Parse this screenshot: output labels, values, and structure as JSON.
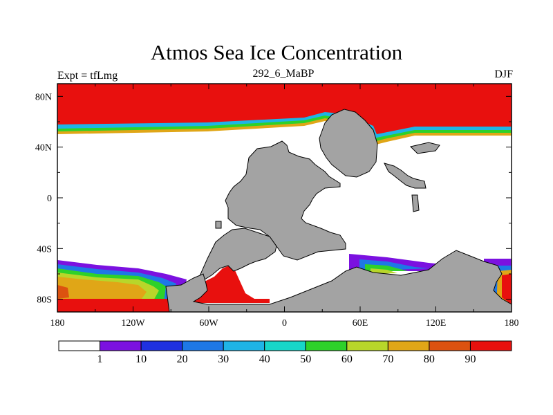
{
  "title": "Atmos Sea Ice Concentration",
  "left_string": "Expt = tfLmg",
  "center_string": "292_6_MaBP",
  "right_string": "DJF",
  "chart_data": {
    "type": "heatmap",
    "variable": "Atmos Sea Ice Concentration",
    "units": "%",
    "season": "DJF",
    "experiment": "tfLmg",
    "x_range": [
      -180,
      180
    ],
    "y_range": [
      -90,
      90
    ],
    "x_ticks": [
      "180",
      "120W",
      "60W",
      "0",
      "60E",
      "120E",
      "180"
    ],
    "y_ticks": [
      "80N",
      "40N",
      "0",
      "40S",
      "80S"
    ],
    "colorbar": {
      "levels": [
        "1",
        "10",
        "20",
        "30",
        "40",
        "50",
        "60",
        "70",
        "80",
        "90"
      ],
      "colors": [
        "#ffffff",
        "#7b11e0",
        "#1f31e0",
        "#1e78e6",
        "#1fb4e6",
        "#17d6c8",
        "#2ed12a",
        "#b8d62a",
        "#e0a617",
        "#dc5210",
        "#e8100e"
      ]
    },
    "land_color": "#a3a3a3"
  }
}
